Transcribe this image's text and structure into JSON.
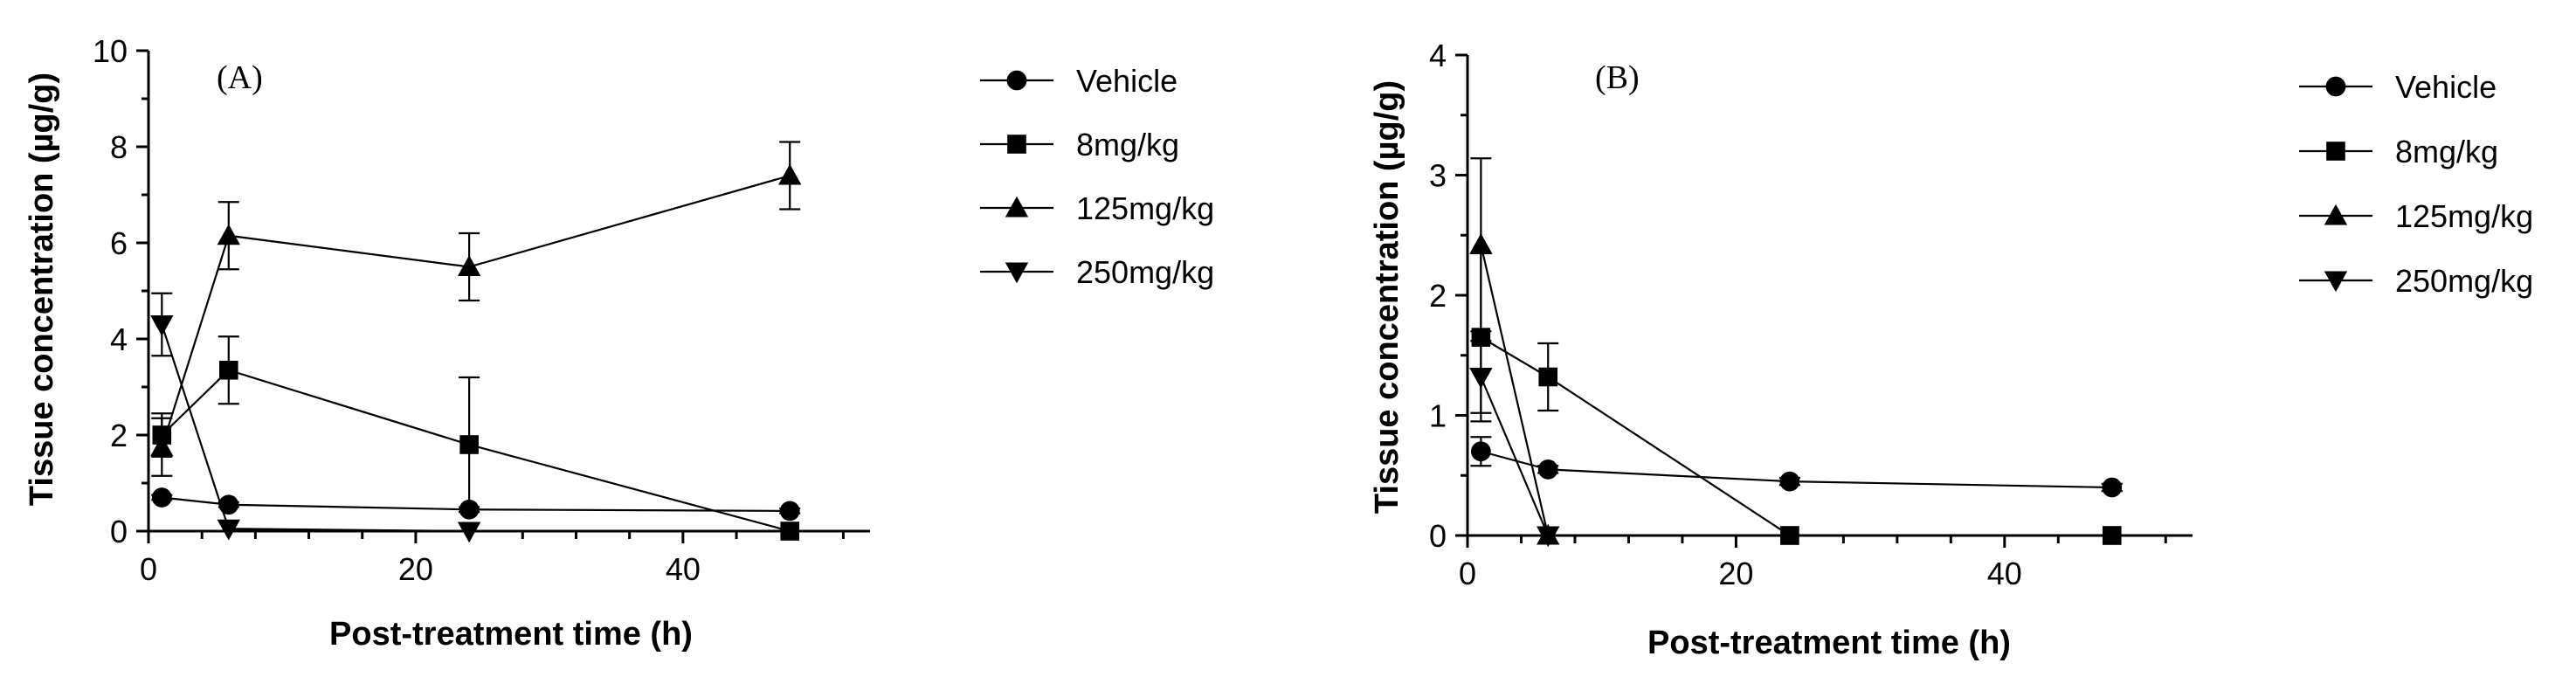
{
  "chart_data": [
    {
      "type": "line",
      "panel_label": "(A)",
      "xlabel": "Post-treatment time (h)",
      "ylabel": "Tissue concentration (µg/g)",
      "xlim": [
        0,
        54
      ],
      "ylim": [
        0,
        10
      ],
      "xticks": [
        0,
        20,
        40
      ],
      "yticks": [
        0,
        2,
        4,
        6,
        8,
        10
      ],
      "legend_position": "right",
      "series": [
        {
          "name": "Vehicle",
          "marker": "circle",
          "x": [
            1,
            6,
            24,
            48
          ],
          "y": [
            0.7,
            0.55,
            0.45,
            0.42
          ],
          "err": [
            0.05,
            0.05,
            0.05,
            0.05
          ]
        },
        {
          "name": "8mg/kg",
          "marker": "square",
          "x": [
            1,
            6,
            24,
            48
          ],
          "y": [
            2.0,
            3.35,
            1.8,
            0.0
          ],
          "err": [
            0.45,
            0.7,
            1.4,
            0.0
          ]
        },
        {
          "name": "125mg/kg",
          "marker": "triangle-up",
          "x": [
            1,
            6,
            24,
            48
          ],
          "y": [
            1.75,
            6.15,
            5.5,
            7.4
          ],
          "err": [
            0.6,
            0.7,
            0.7,
            0.7
          ]
        },
        {
          "name": "250mg/kg",
          "marker": "triangle-down",
          "x": [
            1,
            6,
            24
          ],
          "y": [
            4.3,
            0.05,
            0.0
          ],
          "err": [
            0.65,
            0.0,
            0.0
          ]
        }
      ]
    },
    {
      "type": "line",
      "panel_label": "(B)",
      "xlabel": "Post-treatment time (h)",
      "ylabel": "Tissue concentration (µg/g)",
      "xlim": [
        0,
        54
      ],
      "ylim": [
        0,
        4
      ],
      "xticks": [
        0,
        20,
        40
      ],
      "yticks": [
        0,
        1,
        2,
        3,
        4
      ],
      "legend_position": "right",
      "series": [
        {
          "name": "Vehicle",
          "marker": "circle",
          "x": [
            1,
            6,
            24,
            48
          ],
          "y": [
            0.7,
            0.55,
            0.45,
            0.4
          ],
          "err": [
            0.12,
            0.03,
            0.03,
            0.03
          ]
        },
        {
          "name": "8mg/kg",
          "marker": "square",
          "x": [
            1,
            6,
            24,
            48
          ],
          "y": [
            1.65,
            1.32,
            0.0,
            0.0
          ],
          "err": [
            0.7,
            0.28,
            0.0,
            0.0
          ]
        },
        {
          "name": "125mg/kg",
          "marker": "triangle-up",
          "x": [
            1,
            6
          ],
          "y": [
            2.42,
            0.0
          ],
          "err": [
            0.72,
            0.0
          ]
        },
        {
          "name": "250mg/kg",
          "marker": "triangle-down",
          "x": [
            1,
            6
          ],
          "y": [
            1.32,
            0.0
          ],
          "err": [
            0.3,
            0.0
          ]
        }
      ]
    }
  ]
}
